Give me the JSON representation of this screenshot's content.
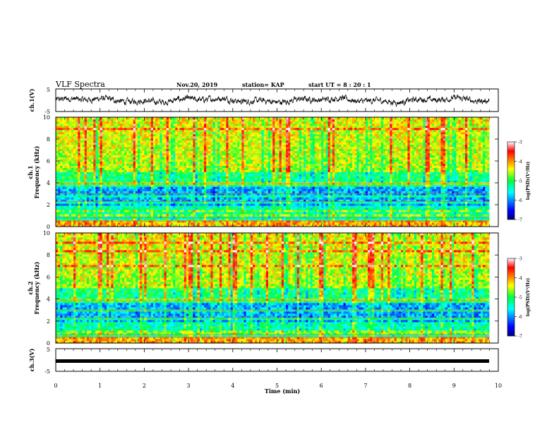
{
  "header": {
    "title": "VLF Spectra",
    "date": "Nov.20, 2019",
    "station": "station= KAP",
    "start": "start  UT =   8  : 20 : 1"
  },
  "chart_data": [
    {
      "type": "line",
      "panel": "ch1-waveform",
      "ylabel": "ch.1(V)",
      "ylim": [
        -5,
        5
      ],
      "yticks": [
        "5",
        "-5"
      ],
      "xlim": [
        0,
        10
      ],
      "series": [
        {
          "values_description": "noisy signal around 0 V, amplitude ~±2 V"
        }
      ]
    },
    {
      "type": "heatmap",
      "panel": "ch1-spectrogram",
      "ylabel": "ch.1\nFrequency  (kHz)",
      "ylim": [
        0,
        10
      ],
      "yticks": [
        "0",
        "2",
        "4",
        "6",
        "8",
        "10"
      ],
      "xlim": [
        0,
        9.8
      ],
      "colorbar": {
        "label": "log(PSD)(V²/Hz)",
        "range": [
          -7,
          -3
        ],
        "ticks": [
          "-3",
          "-4",
          "-5",
          "-6",
          "-7"
        ]
      }
    },
    {
      "type": "heatmap",
      "panel": "ch2-spectrogram",
      "ylabel": "ch.2\nFrequency  (kHz)",
      "ylim": [
        0,
        10
      ],
      "yticks": [
        "0",
        "2",
        "4",
        "6",
        "8",
        "10"
      ],
      "xlim": [
        0,
        9.8
      ],
      "colorbar": {
        "label": "log(PSD)(V²/Hz)",
        "range": [
          -7,
          -3
        ],
        "ticks": [
          "-3",
          "-4",
          "-5",
          "-6",
          "-7"
        ]
      }
    },
    {
      "type": "line",
      "panel": "ch3-waveform",
      "ylabel": "ch.3(V)",
      "ylim": [
        -5,
        5
      ],
      "yticks": [
        "5",
        "-5"
      ],
      "xlim": [
        0,
        10
      ],
      "series": [
        {
          "values_description": "flat line at about -1.5 V"
        }
      ]
    }
  ],
  "xaxis": {
    "label": "Time  (min)",
    "ticks": [
      "0",
      "1",
      "2",
      "3",
      "4",
      "5",
      "6",
      "7",
      "8",
      "9",
      "10"
    ]
  }
}
